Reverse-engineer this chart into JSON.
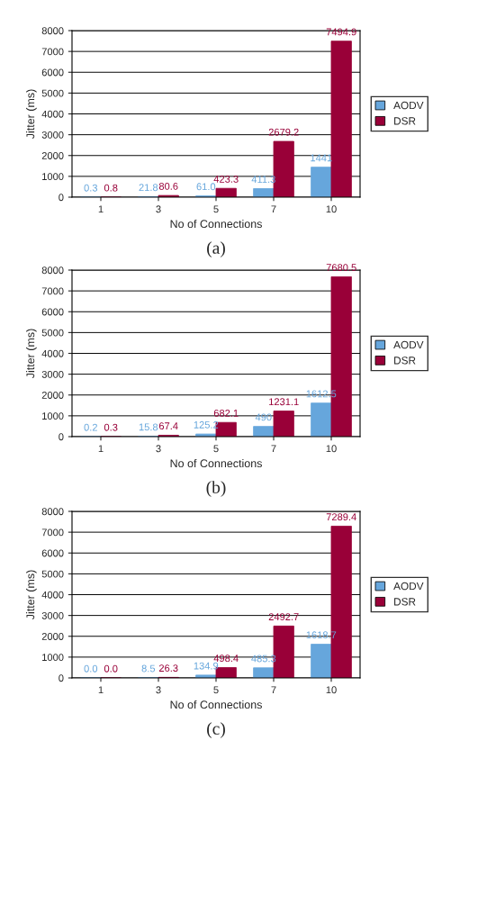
{
  "chart_data": [
    {
      "type": "bar",
      "xlabel": "No of Connections",
      "ylabel": "Jitter (ms)",
      "categories": [
        "1",
        "3",
        "5",
        "7",
        "10"
      ],
      "ylim": [
        0,
        8000
      ],
      "yticks": [
        0,
        1000,
        2000,
        3000,
        4000,
        5000,
        6000,
        7000,
        8000
      ],
      "grid": "y",
      "legend": "right",
      "annotations": [
        "(a)"
      ],
      "series": [
        {
          "name": "AODV",
          "color": "#66a6dc",
          "values": [
            0.3,
            21.8,
            61.0,
            411.3,
            1441
          ],
          "value_labels": [
            "0.3",
            "21.8",
            "61.0",
            "411.3",
            "1441"
          ]
        },
        {
          "name": "DSR",
          "color": "#990038",
          "values": [
            0.8,
            80.6,
            423.3,
            2679.2,
            7494.9
          ],
          "value_labels": [
            "0.8",
            "80.6",
            "423.3",
            "2679.2",
            "7494.9"
          ]
        }
      ]
    },
    {
      "type": "bar",
      "xlabel": "No of Connections",
      "ylabel": "Jitter (ms)",
      "categories": [
        "1",
        "3",
        "5",
        "7",
        "10"
      ],
      "ylim": [
        0,
        8000
      ],
      "yticks": [
        0,
        1000,
        2000,
        3000,
        4000,
        5000,
        6000,
        7000,
        8000
      ],
      "grid": "y",
      "legend": "right",
      "annotations": [
        "(b)"
      ],
      "series": [
        {
          "name": "AODV",
          "color": "#66a6dc",
          "values": [
            0.2,
            15.8,
            125.2,
            490,
            1612.5
          ],
          "value_labels": [
            "0.2",
            "15.8",
            "125.2",
            "490",
            "1612.5"
          ]
        },
        {
          "name": "DSR",
          "color": "#990038",
          "values": [
            0.3,
            67.4,
            682.1,
            1231.1,
            7680.5
          ],
          "value_labels": [
            "0.3",
            "67.4",
            "682.1",
            "1231.1",
            "7680.5"
          ]
        }
      ]
    },
    {
      "type": "bar",
      "xlabel": "No of Connections",
      "ylabel": "Jitter (ms)",
      "categories": [
        "1",
        "3",
        "5",
        "7",
        "10"
      ],
      "ylim": [
        0,
        8000
      ],
      "yticks": [
        0,
        1000,
        2000,
        3000,
        4000,
        5000,
        6000,
        7000,
        8000
      ],
      "grid": "y",
      "legend": "right",
      "annotations": [
        "(c)"
      ],
      "series": [
        {
          "name": "AODV",
          "color": "#66a6dc",
          "values": [
            0.0,
            8.5,
            134.9,
            485.3,
            1618.7
          ],
          "value_labels": [
            "0.0",
            "8.5",
            "134.9",
            "485.3",
            "1618.7"
          ]
        },
        {
          "name": "DSR",
          "color": "#990038",
          "values": [
            0.0,
            26.3,
            498.4,
            2492.7,
            7289.4
          ],
          "value_labels": [
            "0.0",
            "26.3",
            "498.4",
            "2492.7",
            "7289.4"
          ]
        }
      ]
    }
  ]
}
